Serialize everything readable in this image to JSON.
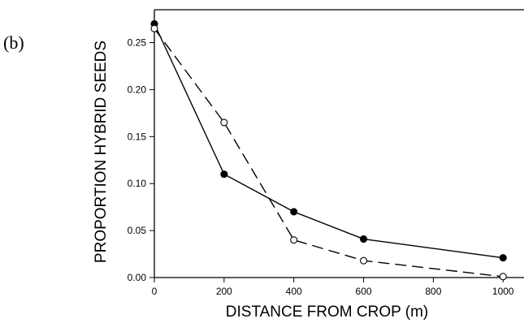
{
  "panel_label": "(b)",
  "chart_data": {
    "type": "line",
    "title": "",
    "xlabel": "DISTANCE FROM CROP (m)",
    "ylabel": "PROPORTION  HYBRID  SEEDS",
    "xlim": [
      0,
      1060
    ],
    "ylim": [
      0,
      0.285
    ],
    "x_ticks": [
      0,
      200,
      400,
      600,
      800,
      1000
    ],
    "y_ticks": [
      0.0,
      0.05,
      0.1,
      0.15,
      0.2,
      0.25
    ],
    "x_tick_labels": [
      "0",
      "200",
      "400",
      "600",
      "800",
      "1000"
    ],
    "y_tick_labels": [
      "0.00",
      "0.05",
      "0.10",
      "0.15",
      "0.20",
      "0.25"
    ],
    "grid": false,
    "series": [
      {
        "style": "solid",
        "marker": "filled-circle",
        "color": "#000000",
        "x": [
          0,
          200,
          400,
          600,
          1000
        ],
        "y": [
          0.27,
          0.11,
          0.07,
          0.041,
          0.021
        ]
      },
      {
        "style": "dashed",
        "marker": "open-circle",
        "color": "#000000",
        "x": [
          0,
          200,
          400,
          600,
          1000
        ],
        "y": [
          0.265,
          0.165,
          0.04,
          0.018,
          0.001
        ]
      }
    ]
  }
}
